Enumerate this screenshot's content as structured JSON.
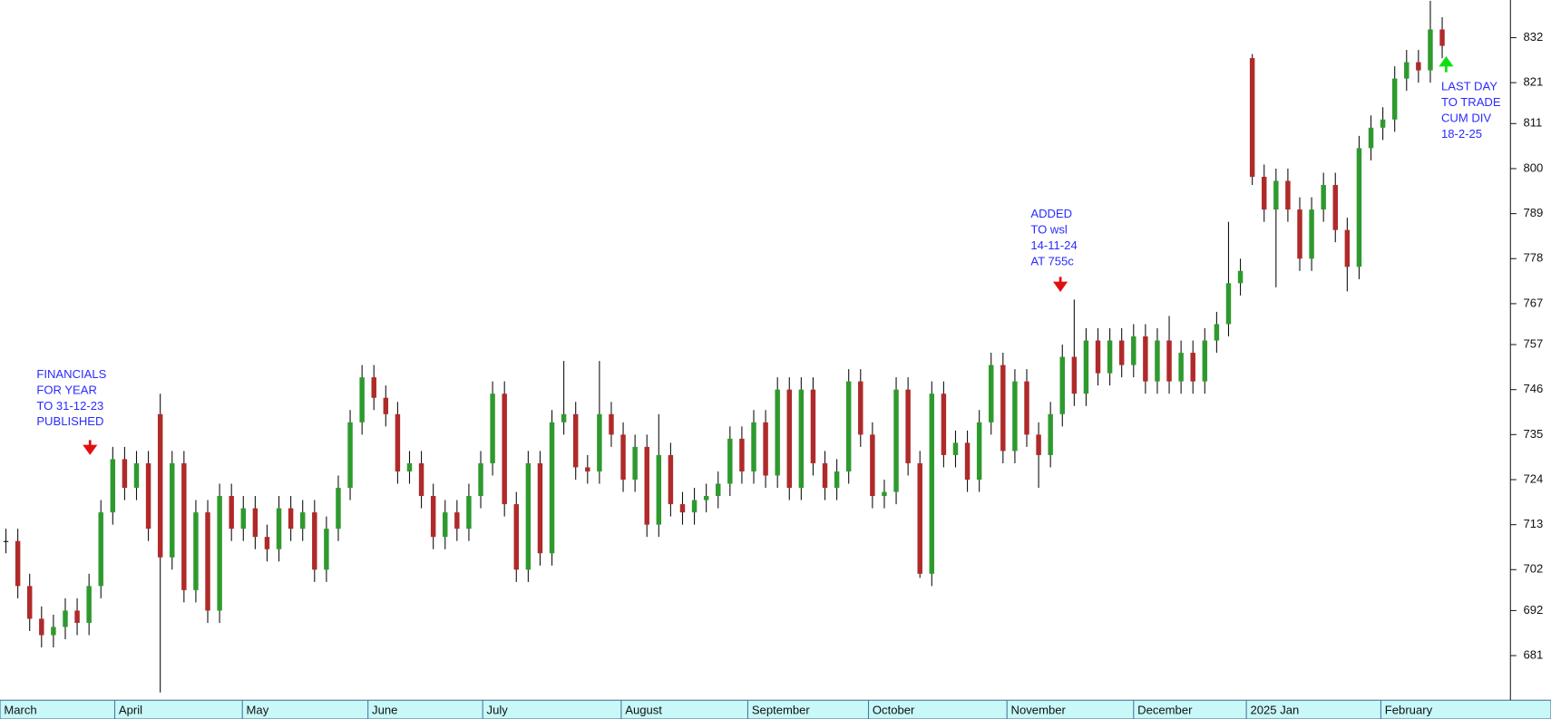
{
  "chart_data": {
    "type": "candlestick",
    "categories": [
      "March",
      "April",
      "May",
      "June",
      "July",
      "August",
      "September",
      "October",
      "November",
      "December",
      "2025 Jan",
      "February"
    ],
    "open": [
      709,
      709,
      698,
      690,
      686,
      688,
      692,
      689,
      698,
      716,
      729,
      722,
      728,
      740,
      705,
      728,
      697,
      716,
      692,
      720,
      712,
      717,
      710,
      707,
      717,
      712,
      716,
      702,
      712,
      722,
      738,
      749,
      744,
      740,
      726,
      728,
      720,
      710,
      716,
      712,
      720,
      728,
      745,
      718,
      702,
      728,
      706,
      738,
      740,
      727,
      726,
      740,
      735,
      724,
      732,
      713,
      730,
      718,
      716,
      719,
      720,
      723,
      734,
      726,
      738,
      725,
      746,
      722,
      746,
      728,
      722,
      726,
      748,
      735,
      720,
      721,
      746,
      728,
      701,
      745,
      730,
      733,
      724,
      738,
      752,
      731,
      748,
      735,
      730,
      740,
      754,
      745,
      758,
      750,
      758,
      752,
      759,
      748,
      758,
      748,
      755,
      748,
      758,
      762,
      772,
      827,
      798,
      790,
      797,
      790,
      778,
      790,
      796,
      785,
      776,
      805,
      810,
      812,
      822,
      826,
      824,
      834
    ],
    "high": [
      712,
      712,
      701,
      693,
      691,
      695,
      695,
      701,
      719,
      732,
      732,
      731,
      731,
      745,
      731,
      731,
      719,
      719,
      723,
      723,
      720,
      720,
      713,
      720,
      720,
      719,
      719,
      715,
      725,
      741,
      752,
      752,
      747,
      743,
      731,
      731,
      723,
      719,
      719,
      723,
      731,
      748,
      748,
      721,
      731,
      731,
      741,
      753,
      743,
      730,
      753,
      743,
      738,
      735,
      735,
      740,
      733,
      721,
      722,
      723,
      726,
      737,
      737,
      741,
      741,
      749,
      749,
      749,
      749,
      731,
      729,
      751,
      751,
      738,
      724,
      749,
      749,
      731,
      748,
      748,
      736,
      736,
      741,
      755,
      755,
      751,
      751,
      738,
      743,
      757,
      768,
      761,
      761,
      761,
      761,
      762,
      762,
      761,
      764,
      758,
      758,
      761,
      765,
      787,
      778,
      828,
      801,
      800,
      800,
      793,
      793,
      799,
      799,
      788,
      808,
      813,
      815,
      825,
      829,
      829,
      841,
      837
    ],
    "low": [
      706,
      695,
      687,
      683,
      683,
      685,
      686,
      686,
      695,
      713,
      719,
      719,
      709,
      672,
      702,
      694,
      694,
      689,
      689,
      709,
      709,
      707,
      704,
      704,
      709,
      709,
      699,
      699,
      709,
      719,
      735,
      741,
      737,
      723,
      723,
      717,
      707,
      707,
      709,
      709,
      717,
      725,
      715,
      699,
      699,
      703,
      703,
      735,
      724,
      723,
      723,
      732,
      721,
      721,
      710,
      710,
      715,
      713,
      713,
      716,
      717,
      720,
      723,
      723,
      722,
      722,
      719,
      719,
      725,
      719,
      719,
      723,
      732,
      717,
      717,
      718,
      725,
      700,
      698,
      727,
      727,
      721,
      721,
      735,
      728,
      728,
      732,
      722,
      727,
      737,
      742,
      742,
      747,
      747,
      749,
      749,
      745,
      745,
      745,
      745,
      745,
      745,
      755,
      759,
      769,
      796,
      787,
      771,
      787,
      775,
      775,
      787,
      782,
      770,
      773,
      802,
      807,
      809,
      819,
      821,
      821,
      827
    ],
    "close": [
      709,
      698,
      690,
      686,
      688,
      692,
      689,
      698,
      716,
      729,
      722,
      728,
      712,
      705,
      728,
      697,
      716,
      692,
      720,
      712,
      717,
      710,
      707,
      717,
      712,
      716,
      702,
      712,
      722,
      738,
      749,
      744,
      740,
      726,
      728,
      720,
      710,
      716,
      712,
      720,
      728,
      745,
      718,
      702,
      728,
      706,
      738,
      740,
      727,
      726,
      740,
      735,
      724,
      732,
      713,
      730,
      718,
      716,
      719,
      720,
      723,
      734,
      726,
      738,
      725,
      746,
      722,
      746,
      728,
      722,
      726,
      748,
      735,
      720,
      721,
      746,
      728,
      701,
      745,
      730,
      733,
      724,
      738,
      752,
      731,
      748,
      735,
      730,
      740,
      754,
      745,
      758,
      750,
      758,
      752,
      759,
      748,
      758,
      748,
      755,
      748,
      758,
      762,
      772,
      775,
      798,
      790,
      797,
      790,
      778,
      790,
      796,
      785,
      776,
      805,
      810,
      812,
      822,
      826,
      824,
      834,
      830
    ],
    "up_color": "#2e9a2e",
    "down_color": "#b02a2a",
    "ylim": [
      670.1,
      841.2
    ],
    "yticks": [
      681,
      692,
      702,
      713,
      724,
      735,
      746,
      757,
      767,
      778,
      789,
      800,
      811,
      821,
      832
    ],
    "annotations": [
      {
        "lines": [
          "FINANCIALS",
          "FOR YEAR",
          "TO 31-12-23",
          "PUBLISHED"
        ]
      },
      {
        "lines": [
          "ADDED",
          "TO wsl",
          "14-11-24",
          "AT 755c"
        ]
      },
      {
        "lines": [
          "LAST DAY",
          "TO TRADE",
          "CUM DIV",
          "18-2-25"
        ]
      }
    ]
  }
}
